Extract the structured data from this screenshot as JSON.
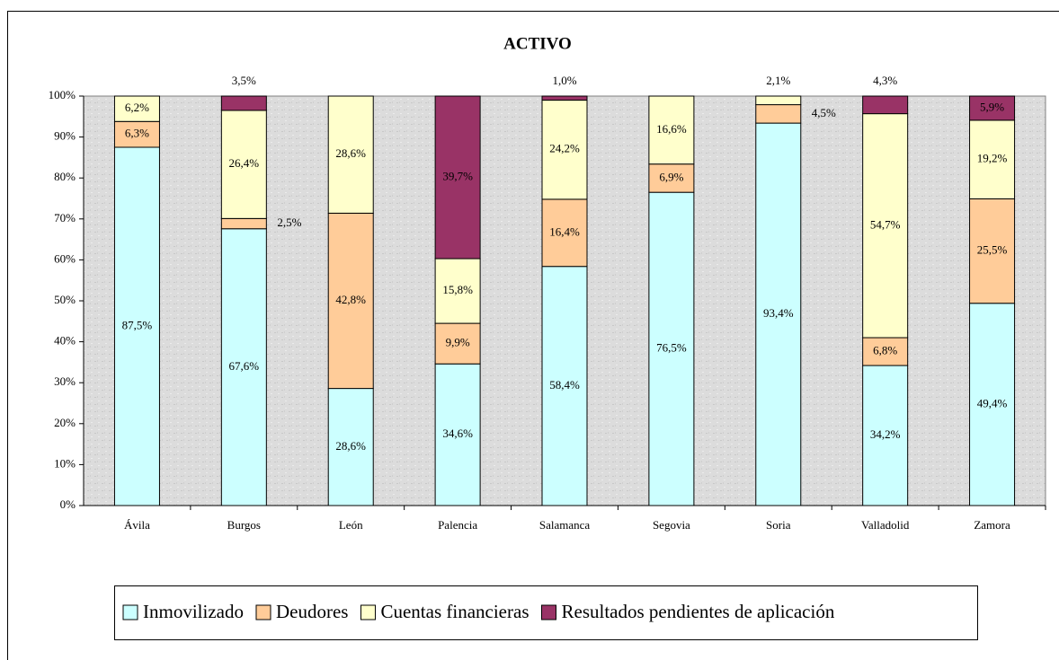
{
  "chart_data": {
    "type": "stacked_bar",
    "title": "ACTIVO",
    "categories": [
      "Ávila",
      "Burgos",
      "León",
      "Palencia",
      "Salamanca",
      "Segovia",
      "Soria",
      "Valladolid",
      "Zamora"
    ],
    "series": [
      {
        "name": "Inmovilizado",
        "color": "#ccffff",
        "values": [
          87.5,
          67.6,
          28.6,
          34.6,
          58.4,
          76.5,
          93.4,
          34.2,
          49.4
        ],
        "value_labels": [
          "87,5%",
          "67,6%",
          "28,6%",
          "34,6%",
          "58,4%",
          "76,5%",
          "93,4%",
          "34,2%",
          "49,4%"
        ]
      },
      {
        "name": "Deudores",
        "color": "#ffcc99",
        "values": [
          6.3,
          2.5,
          42.8,
          9.9,
          16.4,
          6.9,
          4.5,
          6.8,
          25.5
        ],
        "value_labels": [
          "6,3%",
          "2,5%",
          "42,8%",
          "9,9%",
          "16,4%",
          "6,9%",
          "4,5%",
          "6,8%",
          "25,5%"
        ]
      },
      {
        "name": "Cuentas financieras",
        "color": "#ffffcc",
        "values": [
          6.2,
          26.4,
          28.6,
          15.8,
          24.2,
          16.6,
          2.1,
          54.7,
          19.2
        ],
        "value_labels": [
          "6,2%",
          "26,4%",
          "28,6%",
          "15,8%",
          "24,2%",
          "16,6%",
          "2,1%",
          "54,7%",
          "19,2%"
        ]
      },
      {
        "name": "Resultados pendientes de aplicación",
        "color": "#993366",
        "values": [
          0,
          3.5,
          0,
          39.7,
          1.0,
          0,
          0,
          4.3,
          5.9
        ],
        "value_labels": [
          null,
          "3,5%",
          null,
          "39,7%",
          "1,0%",
          null,
          null,
          "4,3%",
          "5,9%"
        ]
      }
    ],
    "ylim": [
      0,
      100
    ],
    "yticks": [
      {
        "value": 0,
        "label": "0%"
      },
      {
        "value": 10,
        "label": "10%"
      },
      {
        "value": 20,
        "label": "20%"
      },
      {
        "value": 30,
        "label": "30%"
      },
      {
        "value": 40,
        "label": "40%"
      },
      {
        "value": 50,
        "label": "50%"
      },
      {
        "value": 60,
        "label": "60%"
      },
      {
        "value": 70,
        "label": "70%"
      },
      {
        "value": 80,
        "label": "80%"
      },
      {
        "value": 90,
        "label": "90%"
      },
      {
        "value": 100,
        "label": "100%"
      }
    ],
    "legend": "bottom"
  }
}
